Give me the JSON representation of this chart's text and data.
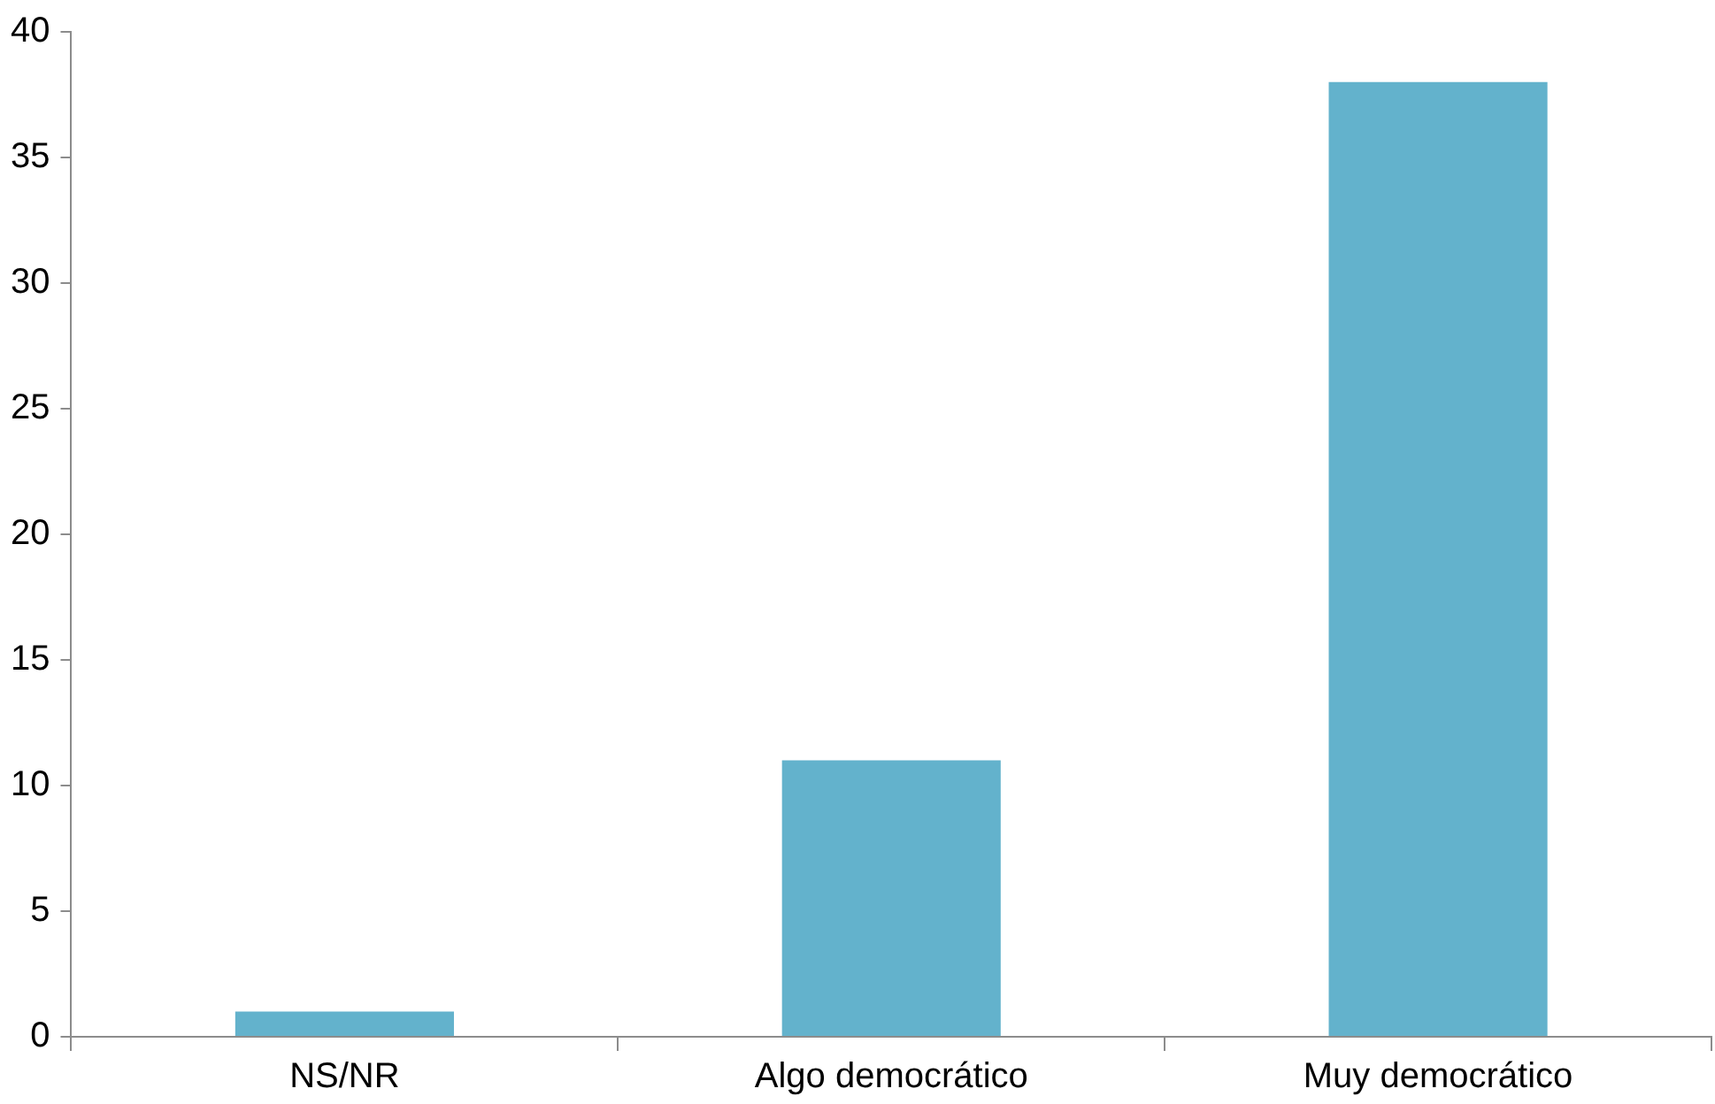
{
  "chart_data": {
    "type": "bar",
    "categories": [
      "NS/NR",
      "Algo democrático",
      "Muy democrático"
    ],
    "values": [
      1,
      11,
      38
    ],
    "color": "#63b2cc",
    "ylim": [
      0,
      40
    ],
    "yticks": [
      0,
      5,
      10,
      15,
      20,
      25,
      30,
      35,
      40
    ],
    "grid": false,
    "legend": false
  }
}
